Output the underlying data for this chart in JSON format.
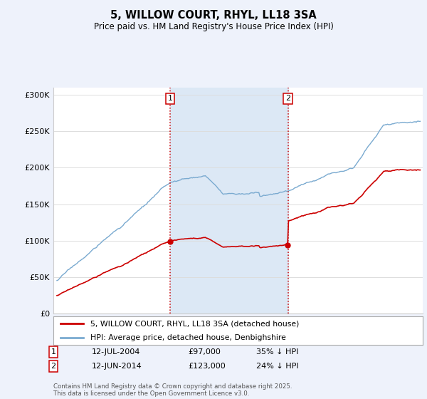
{
  "title": "5, WILLOW COURT, RHYL, LL18 3SA",
  "subtitle": "Price paid vs. HM Land Registry's House Price Index (HPI)",
  "background_color": "#eef2fb",
  "plot_bg_color": "#ffffff",
  "red_line_color": "#cc0000",
  "blue_line_color": "#7aaad0",
  "vline_color": "#cc0000",
  "sale1_date_num": 2004.54,
  "sale1_label": "1",
  "sale1_price": 97000,
  "sale1_pct": "35% ↓ HPI",
  "sale1_date_str": "12-JUL-2004",
  "sale2_date_num": 2014.45,
  "sale2_label": "2",
  "sale2_price": 123000,
  "sale2_pct": "24% ↓ HPI",
  "sale2_date_str": "12-JUN-2014",
  "ylim": [
    0,
    310000
  ],
  "yticks": [
    0,
    50000,
    100000,
    150000,
    200000,
    250000,
    300000
  ],
  "ytick_labels": [
    "£0",
    "£50K",
    "£100K",
    "£150K",
    "£200K",
    "£250K",
    "£300K"
  ],
  "xlim_start": 1994.7,
  "xlim_end": 2025.8,
  "legend_entry1": "5, WILLOW COURT, RHYL, LL18 3SA (detached house)",
  "legend_entry2": "HPI: Average price, detached house, Denbighshire",
  "footer": "Contains HM Land Registry data © Crown copyright and database right 2025.\nThis data is licensed under the Open Government Licence v3.0.",
  "shade_color": "#dce8f5",
  "grid_color": "#dddddd",
  "spine_color": "#cccccc"
}
